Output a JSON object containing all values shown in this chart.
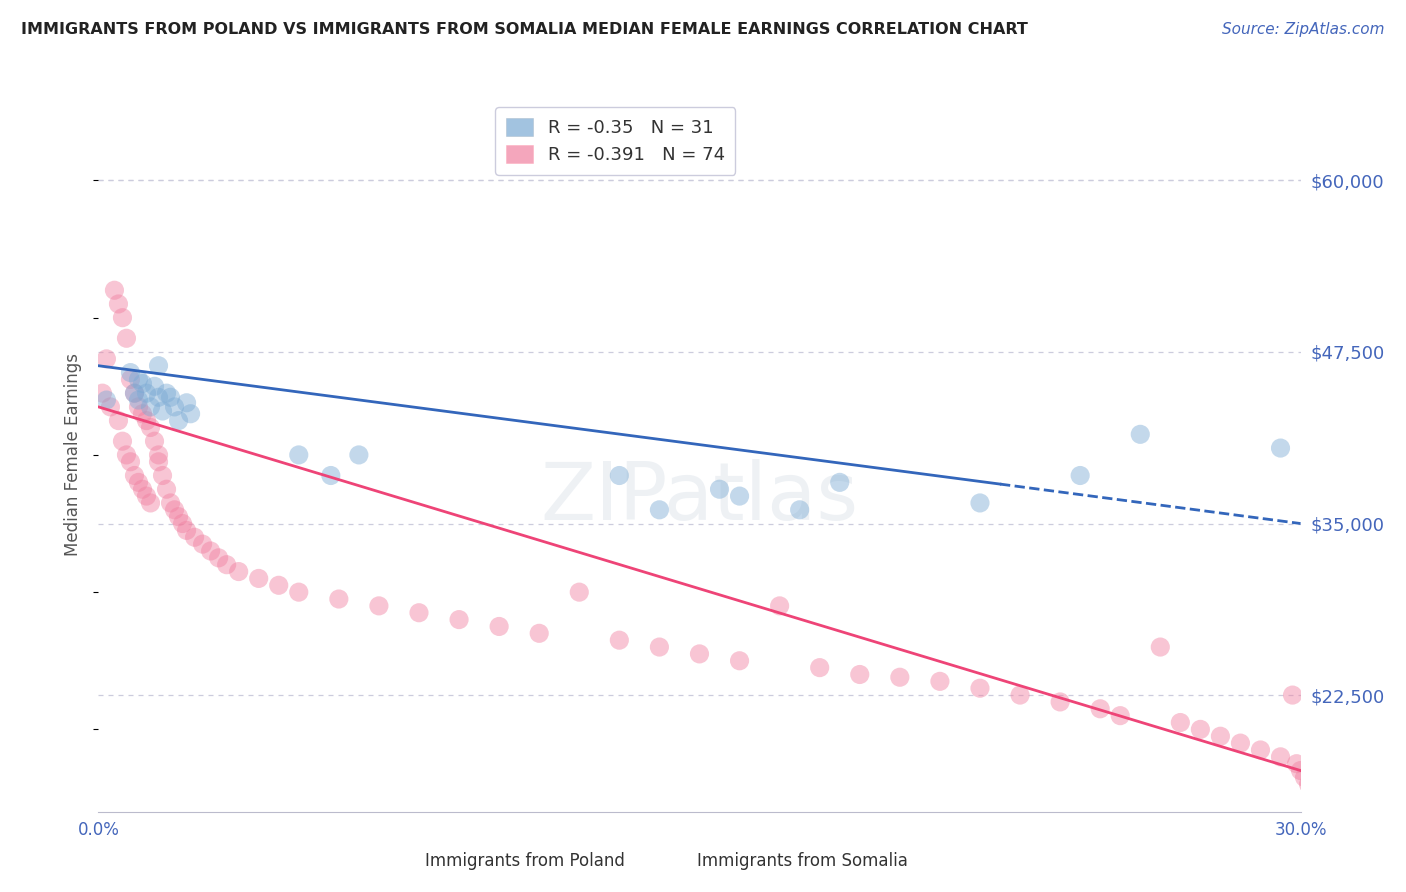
{
  "title": "IMMIGRANTS FROM POLAND VS IMMIGRANTS FROM SOMALIA MEDIAN FEMALE EARNINGS CORRELATION CHART",
  "source": "Source: ZipAtlas.com",
  "ylabel": "Median Female Earnings",
  "x_min": 0.0,
  "x_max": 0.3,
  "y_min": 14000,
  "y_max": 66000,
  "y_ticks": [
    22500,
    35000,
    47500,
    60000
  ],
  "y_tick_labels": [
    "$22,500",
    "$35,000",
    "$47,500",
    "$60,000"
  ],
  "x_ticks": [
    0.0,
    0.05,
    0.1,
    0.15,
    0.2,
    0.25,
    0.3
  ],
  "x_tick_labels": [
    "0.0%",
    "",
    "",
    "",
    "",
    "",
    "30.0%"
  ],
  "poland_R": -0.35,
  "poland_N": 31,
  "somalia_R": -0.391,
  "somalia_N": 74,
  "poland_color": "#7BAAD4",
  "somalia_color": "#F080A0",
  "poland_line_color": "#3366BB",
  "somalia_line_color": "#EE4477",
  "background_color": "#FFFFFF",
  "grid_color": "#CCCCDD",
  "title_color": "#222222",
  "axis_label_color": "#555555",
  "tick_label_color": "#4466BB",
  "watermark": "ZIPatlas",
  "poland_x": [
    0.002,
    0.008,
    0.009,
    0.01,
    0.01,
    0.011,
    0.012,
    0.013,
    0.014,
    0.015,
    0.015,
    0.016,
    0.017,
    0.018,
    0.019,
    0.02,
    0.022,
    0.023,
    0.05,
    0.058,
    0.065,
    0.13,
    0.14,
    0.155,
    0.16,
    0.175,
    0.185,
    0.22,
    0.245,
    0.26,
    0.295
  ],
  "poland_y": [
    44000,
    46000,
    44500,
    45500,
    44000,
    45200,
    44500,
    43500,
    45000,
    44200,
    46500,
    43200,
    44500,
    44200,
    43500,
    42500,
    43800,
    43000,
    40000,
    38500,
    40000,
    38500,
    36000,
    37500,
    37000,
    36000,
    38000,
    36500,
    38500,
    41500,
    40500
  ],
  "somalia_x": [
    0.001,
    0.002,
    0.003,
    0.004,
    0.005,
    0.005,
    0.006,
    0.006,
    0.007,
    0.007,
    0.008,
    0.008,
    0.009,
    0.009,
    0.01,
    0.01,
    0.011,
    0.011,
    0.012,
    0.012,
    0.013,
    0.013,
    0.014,
    0.015,
    0.015,
    0.016,
    0.017,
    0.018,
    0.019,
    0.02,
    0.021,
    0.022,
    0.024,
    0.026,
    0.028,
    0.03,
    0.032,
    0.035,
    0.04,
    0.045,
    0.05,
    0.06,
    0.07,
    0.08,
    0.09,
    0.1,
    0.11,
    0.12,
    0.13,
    0.14,
    0.15,
    0.16,
    0.17,
    0.18,
    0.19,
    0.2,
    0.21,
    0.22,
    0.23,
    0.24,
    0.25,
    0.255,
    0.265,
    0.27,
    0.275,
    0.28,
    0.285,
    0.29,
    0.295,
    0.298,
    0.299,
    0.3,
    0.301,
    0.302
  ],
  "somalia_y": [
    44500,
    47000,
    43500,
    52000,
    42500,
    51000,
    41000,
    50000,
    40000,
    48500,
    39500,
    45500,
    38500,
    44500,
    38000,
    43500,
    37500,
    43000,
    37000,
    42500,
    36500,
    42000,
    41000,
    40000,
    39500,
    38500,
    37500,
    36500,
    36000,
    35500,
    35000,
    34500,
    34000,
    33500,
    33000,
    32500,
    32000,
    31500,
    31000,
    30500,
    30000,
    29500,
    29000,
    28500,
    28000,
    27500,
    27000,
    30000,
    26500,
    26000,
    25500,
    25000,
    29000,
    24500,
    24000,
    23800,
    23500,
    23000,
    22500,
    22000,
    21500,
    21000,
    26000,
    20500,
    20000,
    19500,
    19000,
    18500,
    18000,
    22500,
    17500,
    17000,
    16500,
    16000
  ]
}
